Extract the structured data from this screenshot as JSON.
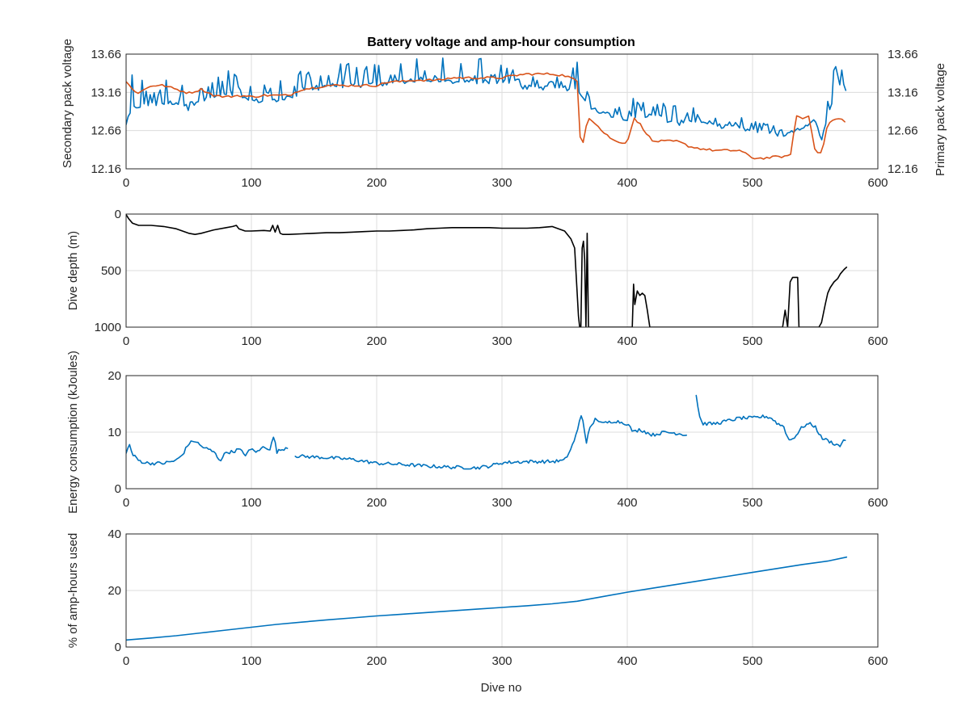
{
  "figure": {
    "title": "Battery voltage and amp-hour consumption",
    "colors": {
      "blue": "#0072bd",
      "orange": "#d95319",
      "black": "#000000"
    }
  },
  "chart_data": [
    {
      "type": "line",
      "title": "Battery voltage and amp-hour consumption",
      "xlabel": "",
      "ylabel": "Secondary pack voltage",
      "ylabel_right": "Primary pack voltage",
      "xlim": [
        0,
        600
      ],
      "ylim": [
        12.16,
        13.66
      ],
      "ylim_right": [
        12.16,
        13.66
      ],
      "xticks": [
        "0",
        "100",
        "200",
        "300",
        "400",
        "500",
        "600"
      ],
      "yticks": [
        "12.16",
        "12.66",
        "13.16",
        "13.66"
      ],
      "yticks_right": [
        "12.16",
        "12.66",
        "13.16",
        "13.66"
      ],
      "grid": true,
      "series": [
        {
          "axis": "left",
          "color": "#0072bd",
          "x": [
            0,
            5,
            10,
            20,
            30,
            40,
            50,
            60,
            70,
            80,
            90,
            100,
            110,
            120,
            130,
            140,
            150,
            160,
            170,
            180,
            190,
            200,
            210,
            220,
            230,
            240,
            250,
            260,
            270,
            280,
            290,
            300,
            310,
            320,
            330,
            340,
            350,
            355,
            360,
            365,
            370,
            380,
            390,
            400,
            410,
            420,
            430,
            440,
            450,
            460,
            470,
            480,
            490,
            500,
            510,
            520,
            530,
            540,
            545,
            550,
            555,
            560,
            565,
            570,
            575
          ],
          "y": [
            12.75,
            12.95,
            12.98,
            13.0,
            13.02,
            13.03,
            12.95,
            13.05,
            13.1,
            13.12,
            13.08,
            13.05,
            13.05,
            13.05,
            13.08,
            13.15,
            13.2,
            13.25,
            13.25,
            13.25,
            13.25,
            13.25,
            13.28,
            13.3,
            13.3,
            13.3,
            13.3,
            13.3,
            13.3,
            13.3,
            13.3,
            13.3,
            13.25,
            13.22,
            13.22,
            13.22,
            13.22,
            13.18,
            13.18,
            13.1,
            12.95,
            12.9,
            12.85,
            12.82,
            12.8,
            12.9,
            12.8,
            12.75,
            12.8,
            12.75,
            12.72,
            12.72,
            12.7,
            12.65,
            12.68,
            12.6,
            12.62,
            12.7,
            12.75,
            12.8,
            12.5,
            12.9,
            13.1,
            13.2,
            13.2
          ],
          "spike": [
            0.6,
            0.5,
            0.45,
            0.35,
            0.35,
            0.3,
            0.25,
            0.3,
            0.3,
            0.35,
            0.35,
            0.35,
            0.3,
            0.3,
            0.25,
            0.3,
            0.3,
            0.3,
            0.3,
            0.3,
            0.3,
            0.3,
            0.3,
            0.3,
            0.3,
            0.3,
            0.3,
            0.35,
            0.35,
            0.35,
            0.35,
            0.3,
            0.25,
            0.15,
            0.15,
            0.15,
            0.2,
            0.3,
            0.45,
            0.4,
            0.35,
            0.3,
            0.25,
            0.3,
            0.25,
            0.25,
            0.25,
            0.25,
            0.3,
            0.2,
            0.15,
            0.2,
            0.15,
            0.15,
            0.15,
            0.15,
            0.15,
            0.15,
            0.2,
            0.2,
            0.15,
            0.3,
            0.45,
            0.4,
            0.2
          ]
        },
        {
          "axis": "right",
          "color": "#d95319",
          "x": [
            0,
            5,
            10,
            20,
            30,
            40,
            50,
            60,
            70,
            80,
            90,
            100,
            110,
            120,
            130,
            140,
            150,
            160,
            170,
            180,
            190,
            200,
            210,
            220,
            230,
            240,
            250,
            260,
            270,
            280,
            290,
            300,
            310,
            320,
            330,
            340,
            350,
            355,
            360,
            362,
            364,
            366,
            368,
            375,
            380,
            390,
            400,
            405,
            410,
            420,
            430,
            440,
            450,
            460,
            470,
            480,
            490,
            500,
            510,
            520,
            530,
            535,
            540,
            545,
            550,
            555,
            560,
            565,
            570,
            575
          ],
          "y": [
            13.3,
            13.2,
            13.15,
            13.25,
            13.25,
            13.2,
            13.15,
            13.2,
            13.12,
            13.1,
            13.12,
            13.1,
            13.12,
            13.12,
            13.12,
            13.2,
            13.22,
            13.25,
            13.25,
            13.25,
            13.25,
            13.25,
            13.3,
            13.3,
            13.32,
            13.32,
            13.32,
            13.35,
            13.35,
            13.35,
            13.35,
            13.35,
            13.38,
            13.4,
            13.4,
            13.4,
            13.38,
            13.35,
            13.3,
            12.6,
            12.5,
            12.55,
            12.85,
            12.75,
            12.65,
            12.52,
            12.5,
            12.82,
            12.75,
            12.52,
            12.52,
            12.52,
            12.45,
            12.42,
            12.4,
            12.4,
            12.4,
            12.3,
            12.3,
            12.32,
            12.32,
            12.85,
            12.82,
            12.85,
            12.4,
            12.35,
            12.75,
            12.8,
            12.82,
            12.75
          ]
        }
      ]
    },
    {
      "type": "line",
      "title": "",
      "xlabel": "",
      "ylabel": "Dive depth (m)",
      "xlim": [
        0,
        600
      ],
      "ylim": [
        0,
        1000
      ],
      "y_reversed": true,
      "xticks": [
        "0",
        "100",
        "200",
        "300",
        "400",
        "500",
        "600"
      ],
      "yticks": [
        "0",
        "500",
        "1000"
      ],
      "grid": true,
      "series": [
        {
          "color": "#000000",
          "x": [
            0,
            2,
            5,
            10,
            20,
            30,
            40,
            50,
            55,
            60,
            70,
            80,
            85,
            88,
            90,
            95,
            100,
            110,
            115,
            117,
            119,
            121,
            123,
            125,
            130,
            140,
            150,
            160,
            170,
            180,
            190,
            200,
            210,
            220,
            230,
            240,
            250,
            260,
            270,
            280,
            290,
            300,
            310,
            320,
            330,
            340,
            350,
            355,
            358,
            361,
            362,
            363,
            364,
            365,
            366,
            367,
            368,
            369,
            370,
            371,
            380,
            390,
            400,
            404,
            405,
            406,
            408,
            410,
            412,
            414,
            416,
            418,
            420,
            430,
            440,
            450,
            460,
            470,
            480,
            490,
            500,
            510,
            520,
            524,
            526,
            528,
            530,
            532,
            534,
            536,
            537,
            538,
            540,
            545,
            550,
            553,
            555,
            558,
            560,
            562,
            565,
            568,
            570,
            573,
            575
          ],
          "y": [
            5,
            40,
            80,
            100,
            100,
            110,
            130,
            170,
            180,
            170,
            140,
            120,
            110,
            100,
            130,
            150,
            150,
            145,
            150,
            100,
            160,
            100,
            170,
            180,
            180,
            175,
            170,
            165,
            165,
            160,
            155,
            150,
            150,
            145,
            140,
            130,
            125,
            120,
            120,
            120,
            120,
            125,
            125,
            125,
            120,
            110,
            150,
            220,
            300,
            900,
            1000,
            1000,
            300,
            240,
            400,
            1000,
            170,
            1000,
            1000,
            1000,
            1000,
            1000,
            1000,
            1000,
            620,
            800,
            680,
            720,
            700,
            720,
            850,
            1000,
            1000,
            1000,
            1000,
            1000,
            1000,
            1000,
            1000,
            1000,
            1000,
            1000,
            1000,
            1000,
            850,
            1000,
            600,
            560,
            560,
            560,
            1000,
            1000,
            1000,
            1000,
            1000,
            1000,
            960,
            800,
            700,
            650,
            600,
            570,
            530,
            490,
            470
          ]
        }
      ]
    },
    {
      "type": "line",
      "title": "",
      "xlabel": "",
      "ylabel": "Energy consumption (kJoules)",
      "xlim": [
        0,
        600
      ],
      "ylim": [
        0,
        20
      ],
      "xticks": [
        "0",
        "100",
        "200",
        "300",
        "400",
        "500",
        "600"
      ],
      "yticks": [
        "0",
        "10",
        "20"
      ],
      "grid": true,
      "series": [
        {
          "color": "#0072bd",
          "segments": [
            {
              "x": [
                0,
                3,
                5,
                8,
                10,
                15,
                20,
                30,
                40,
                45,
                50,
                55,
                60,
                65,
                70,
                75,
                80,
                85,
                90,
                95,
                100,
                105,
                110,
                115,
                118,
                120,
                125,
                130
              ],
              "y": [
                6.5,
                7.8,
                6.0,
                5.5,
                5.0,
                4.6,
                4.5,
                4.5,
                5.0,
                6.0,
                8.0,
                8.5,
                7.5,
                7.0,
                6.5,
                5.0,
                6.5,
                6.5,
                7.0,
                6.0,
                7.0,
                6.5,
                7.5,
                7.0,
                9.5,
                6.5,
                7.0,
                7.5
              ]
            },
            {
              "x": [
                135,
                150,
                160,
                180,
                200,
                220,
                240,
                260,
                280,
                290,
                300,
                320,
                340,
                350,
                355,
                360,
                363,
                365,
                367,
                370,
                375,
                380,
                390,
                400,
                405,
                410,
                420,
                430,
                440,
                448
              ],
              "y": [
                5.8,
                5.6,
                5.5,
                5.2,
                4.5,
                4.3,
                4.0,
                3.8,
                3.7,
                4.0,
                4.6,
                4.8,
                4.8,
                5.0,
                7.0,
                10.0,
                13.0,
                12.0,
                8.0,
                10.5,
                12.5,
                11.5,
                12.0,
                11.5,
                10.0,
                10.5,
                9.5,
                10.0,
                9.8,
                9.5
              ]
            },
            {
              "x": [
                455,
                458,
                460,
                470,
                480,
                490,
                500,
                510,
                515,
                520,
                525,
                528,
                530,
                535,
                540,
                545,
                550,
                555,
                560,
                565,
                570,
                573,
                575
              ],
              "y": [
                16.5,
                12.5,
                11.5,
                11.5,
                12.0,
                12.5,
                12.5,
                12.8,
                12.5,
                11.5,
                11.0,
                9.0,
                8.5,
                9.5,
                11.0,
                11.5,
                11.0,
                9.0,
                8.5,
                8.0,
                7.5,
                9.0,
                7.5
              ]
            }
          ],
          "noise": 0.6
        }
      ]
    },
    {
      "type": "line",
      "title": "",
      "xlabel": "Dive no",
      "ylabel": "% of amp-hours used",
      "xlim": [
        0,
        600
      ],
      "ylim": [
        0,
        40
      ],
      "xticks": [
        "0",
        "100",
        "200",
        "300",
        "400",
        "500",
        "600"
      ],
      "yticks": [
        "0",
        "20",
        "40"
      ],
      "grid": true,
      "series": [
        {
          "color": "#0072bd",
          "x": [
            0,
            20,
            40,
            60,
            80,
            100,
            120,
            140,
            160,
            180,
            200,
            220,
            240,
            260,
            280,
            300,
            320,
            340,
            360,
            380,
            400,
            420,
            440,
            460,
            480,
            500,
            520,
            540,
            560,
            575
          ],
          "y": [
            2.5,
            3.2,
            4.0,
            5.0,
            6.0,
            7.0,
            8.0,
            8.8,
            9.6,
            10.3,
            11.0,
            11.6,
            12.2,
            12.8,
            13.4,
            14.0,
            14.6,
            15.3,
            16.2,
            17.8,
            19.4,
            20.8,
            22.2,
            23.6,
            25.0,
            26.4,
            27.8,
            29.2,
            30.4,
            31.8
          ]
        }
      ]
    }
  ]
}
